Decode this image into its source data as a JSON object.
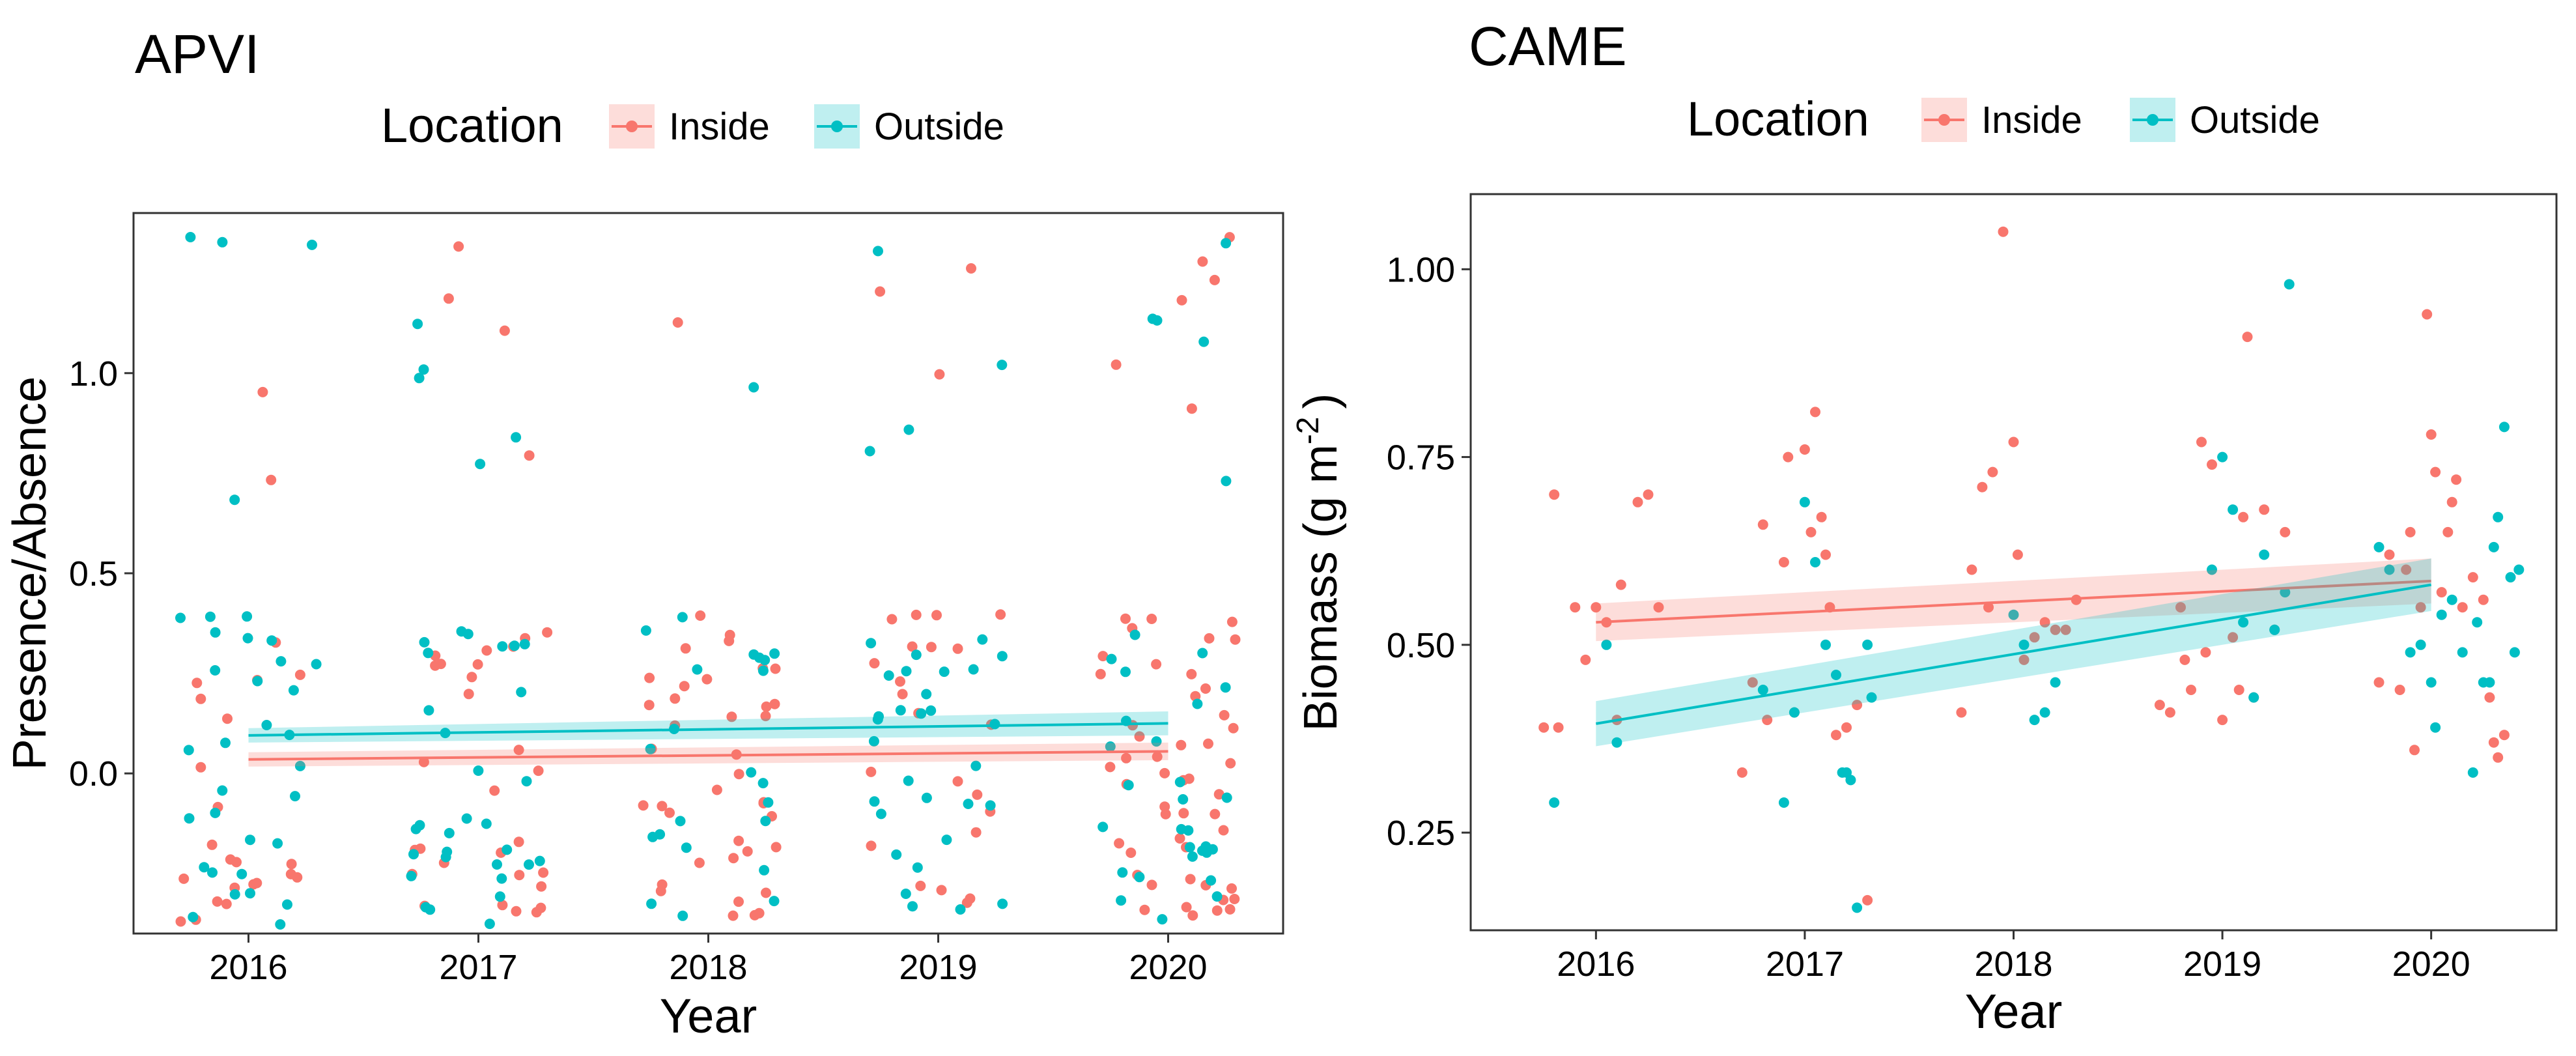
{
  "chart_data": [
    {
      "type": "scatter",
      "title": "APVI",
      "xlabel": "Year",
      "ylabel": "Presence/Absence",
      "legend": {
        "title": "Location",
        "position": "top",
        "entries": [
          "Inside",
          "Outside"
        ]
      },
      "x_ticks": [
        2016,
        2017,
        2018,
        2019,
        2020
      ],
      "y_ticks": [
        0.0,
        0.5,
        1.0
      ],
      "y_tick_labels": [
        "0.0",
        "0.5",
        "1.0"
      ],
      "xlim": [
        2015.5,
        2020.5
      ],
      "ylim": [
        -0.4,
        1.4
      ],
      "grid": false,
      "jitter": {
        "x": 0.3,
        "y_band": [
          -0.38,
          0.4
        ],
        "y_high": [
          0.68,
          1.36
        ]
      },
      "colors": {
        "Inside": "#F8766D",
        "Outside": "#00BFC4"
      },
      "series": [
        {
          "name": "Inside",
          "trend": {
            "x": [
              2016,
              2020
            ],
            "y": [
              0.035,
              0.055
            ],
            "ci": [
              0.018,
              0.022
            ]
          },
          "zero_counts": [
            22,
            28,
            38,
            22,
            48
          ],
          "one_counts": [
            2,
            4,
            1,
            3,
            6
          ]
        },
        {
          "name": "Outside",
          "trend": {
            "x": [
              2016,
              2020
            ],
            "y": [
              0.095,
              0.125
            ],
            "ci": [
              0.018,
              0.03
            ]
          },
          "zero_counts": [
            30,
            30,
            22,
            30,
            28
          ],
          "one_counts": [
            4,
            5,
            1,
            4,
            5
          ]
        }
      ]
    },
    {
      "type": "scatter",
      "title": "CAME",
      "xlabel": "Year",
      "ylabel": "Biomass (g  m",
      "ylabel_sup": "-2",
      "ylabel_end": ")",
      "legend": {
        "title": "Location",
        "position": "top",
        "entries": [
          "Inside",
          "Outside"
        ]
      },
      "x_ticks": [
        2016,
        2017,
        2018,
        2019,
        2020
      ],
      "y_ticks": [
        0.25,
        0.5,
        0.75,
        1.0
      ],
      "y_tick_labels": [
        "0.25",
        "0.50",
        "0.75",
        "1.00"
      ],
      "xlim": [
        2015.4,
        2020.6
      ],
      "ylim": [
        0.12,
        1.1
      ],
      "grid": false,
      "colors": {
        "Inside": "#F8766D",
        "Outside": "#00BFC4"
      },
      "series": [
        {
          "name": "Inside",
          "trend": {
            "x": [
              2016,
              2020
            ],
            "y": [
              0.53,
              0.585
            ],
            "ci": [
              0.025,
              0.03
            ]
          },
          "points": [
            [
              2015.75,
              0.39
            ],
            [
              2015.8,
              0.7
            ],
            [
              2015.82,
              0.39
            ],
            [
              2015.9,
              0.55
            ],
            [
              2015.95,
              0.48
            ],
            [
              2016.0,
              0.55
            ],
            [
              2016.05,
              0.53
            ],
            [
              2016.1,
              0.4
            ],
            [
              2016.12,
              0.58
            ],
            [
              2016.2,
              0.69
            ],
            [
              2016.25,
              0.7
            ],
            [
              2016.3,
              0.55
            ],
            [
              2016.7,
              0.33
            ],
            [
              2016.75,
              0.45
            ],
            [
              2016.8,
              0.66
            ],
            [
              2016.82,
              0.4
            ],
            [
              2016.9,
              0.61
            ],
            [
              2016.92,
              0.75
            ],
            [
              2016.95,
              0.41
            ],
            [
              2017.0,
              0.76
            ],
            [
              2017.03,
              0.65
            ],
            [
              2017.05,
              0.81
            ],
            [
              2017.08,
              0.67
            ],
            [
              2017.1,
              0.62
            ],
            [
              2017.12,
              0.55
            ],
            [
              2017.15,
              0.38
            ],
            [
              2017.2,
              0.39
            ],
            [
              2017.25,
              0.42
            ],
            [
              2017.3,
              0.16
            ],
            [
              2017.75,
              0.41
            ],
            [
              2017.8,
              0.6
            ],
            [
              2017.85,
              0.71
            ],
            [
              2017.88,
              0.55
            ],
            [
              2017.9,
              0.73
            ],
            [
              2017.95,
              1.05
            ],
            [
              2018.0,
              0.77
            ],
            [
              2018.02,
              0.62
            ],
            [
              2018.05,
              0.48
            ],
            [
              2018.1,
              0.51
            ],
            [
              2018.15,
              0.53
            ],
            [
              2018.2,
              0.52
            ],
            [
              2018.25,
              0.52
            ],
            [
              2018.3,
              0.56
            ],
            [
              2018.7,
              0.42
            ],
            [
              2018.75,
              0.41
            ],
            [
              2018.8,
              0.55
            ],
            [
              2018.82,
              0.48
            ],
            [
              2018.85,
              0.44
            ],
            [
              2018.9,
              0.77
            ],
            [
              2018.92,
              0.49
            ],
            [
              2018.95,
              0.74
            ],
            [
              2019.0,
              0.4
            ],
            [
              2019.05,
              0.51
            ],
            [
              2019.08,
              0.44
            ],
            [
              2019.1,
              0.67
            ],
            [
              2019.12,
              0.91
            ],
            [
              2019.15,
              0.43
            ],
            [
              2019.2,
              0.68
            ],
            [
              2019.25,
              0.52
            ],
            [
              2019.3,
              0.65
            ],
            [
              2019.75,
              0.45
            ],
            [
              2019.8,
              0.62
            ],
            [
              2019.85,
              0.44
            ],
            [
              2019.88,
              0.6
            ],
            [
              2019.9,
              0.65
            ],
            [
              2019.92,
              0.36
            ],
            [
              2019.95,
              0.55
            ],
            [
              2019.98,
              0.94
            ],
            [
              2020.0,
              0.78
            ],
            [
              2020.02,
              0.73
            ],
            [
              2020.05,
              0.57
            ],
            [
              2020.08,
              0.65
            ],
            [
              2020.1,
              0.69
            ],
            [
              2020.12,
              0.72
            ],
            [
              2020.15,
              0.55
            ],
            [
              2020.2,
              0.59
            ],
            [
              2020.25,
              0.56
            ],
            [
              2020.28,
              0.43
            ],
            [
              2020.3,
              0.37
            ],
            [
              2020.32,
              0.35
            ],
            [
              2020.35,
              0.38
            ]
          ]
        },
        {
          "name": "Outside",
          "trend": {
            "x": [
              2016,
              2020
            ],
            "y": [
              0.395,
              0.58
            ],
            "ci": [
              0.03,
              0.035
            ]
          },
          "points": [
            [
              2015.8,
              0.29
            ],
            [
              2016.05,
              0.5
            ],
            [
              2016.1,
              0.37
            ],
            [
              2016.8,
              0.44
            ],
            [
              2016.9,
              0.29
            ],
            [
              2016.95,
              0.41
            ],
            [
              2017.0,
              0.69
            ],
            [
              2017.05,
              0.61
            ],
            [
              2017.1,
              0.5
            ],
            [
              2017.15,
              0.46
            ],
            [
              2017.18,
              0.33
            ],
            [
              2017.2,
              0.33
            ],
            [
              2017.22,
              0.32
            ],
            [
              2017.25,
              0.15
            ],
            [
              2017.3,
              0.5
            ],
            [
              2017.32,
              0.43
            ],
            [
              2018.0,
              0.54
            ],
            [
              2018.05,
              0.5
            ],
            [
              2018.1,
              0.4
            ],
            [
              2018.15,
              0.41
            ],
            [
              2018.2,
              0.45
            ],
            [
              2018.95,
              0.6
            ],
            [
              2019.0,
              0.75
            ],
            [
              2019.05,
              0.68
            ],
            [
              2019.1,
              0.53
            ],
            [
              2019.15,
              0.43
            ],
            [
              2019.2,
              0.62
            ],
            [
              2019.25,
              0.52
            ],
            [
              2019.3,
              0.57
            ],
            [
              2019.32,
              0.98
            ],
            [
              2019.75,
              0.63
            ],
            [
              2019.8,
              0.6
            ],
            [
              2019.9,
              0.49
            ],
            [
              2019.95,
              0.5
            ],
            [
              2020.0,
              0.45
            ],
            [
              2020.02,
              0.39
            ],
            [
              2020.05,
              0.54
            ],
            [
              2020.1,
              0.56
            ],
            [
              2020.15,
              0.49
            ],
            [
              2020.2,
              0.33
            ],
            [
              2020.22,
              0.53
            ],
            [
              2020.25,
              0.45
            ],
            [
              2020.28,
              0.45
            ],
            [
              2020.3,
              0.63
            ],
            [
              2020.32,
              0.67
            ],
            [
              2020.35,
              0.79
            ],
            [
              2020.38,
              0.59
            ],
            [
              2020.4,
              0.49
            ],
            [
              2020.42,
              0.6
            ]
          ]
        }
      ]
    }
  ]
}
